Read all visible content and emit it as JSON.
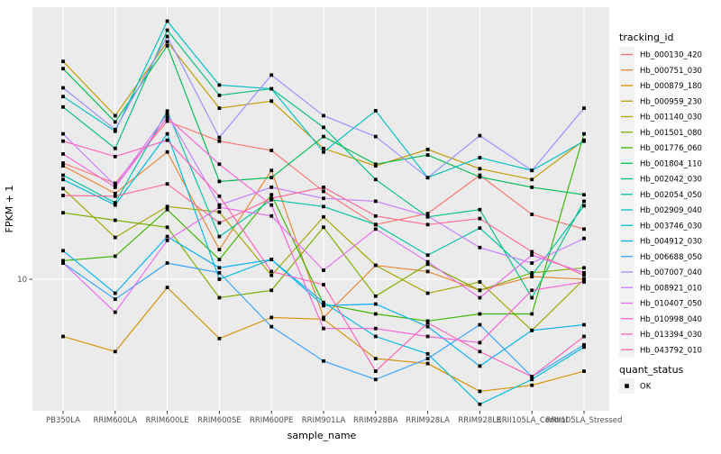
{
  "chart_data": {
    "type": "line",
    "title": "",
    "xlabel": "sample_name",
    "ylabel": "FPKM + 1",
    "y_scale": "log10",
    "y_tick_labels": [
      "10"
    ],
    "y_tick_values": [
      10
    ],
    "ylim_log10": [
      0.5697,
      1.8902
    ],
    "grid": "major-only-white-on-gray",
    "legend_position": "right",
    "point_shape": "filled-square-black",
    "categories": [
      "PB350LA",
      "RRIM600LA",
      "RRIM600LE",
      "RRIM600SE",
      "RRIM600PE",
      "RRIM901LA",
      "RRIM928BA",
      "RRIM928LA",
      "RRIM928LE",
      "RRII105LA_Control",
      "RRII105LA_Stressed"
    ],
    "series": [
      {
        "name": "Hb_000130_420",
        "color": "#F8766D",
        "values": [
          24.0,
          20.6,
          32.9,
          28.3,
          26.4,
          19.4,
          15.1,
          16.4,
          21.9,
          16.3,
          14.6
        ]
      },
      {
        "name": "Hb_000751_030",
        "color": "#EA8331",
        "values": [
          23.5,
          19.1,
          26.1,
          12.5,
          22.7,
          7.5,
          11.1,
          10.6,
          9.2,
          10.2,
          10.0
        ]
      },
      {
        "name": "Hb_000879_180",
        "color": "#D89000",
        "values": [
          6.5,
          5.8,
          9.4,
          6.4,
          7.5,
          7.4,
          5.5,
          5.3,
          4.3,
          4.5,
          5.0
        ]
      },
      {
        "name": "Hb_000959_230",
        "color": "#C09B00",
        "values": [
          51.6,
          34.3,
          59.8,
          36.3,
          38.3,
          26.8,
          23.5,
          26.6,
          23.0,
          21.2,
          28.5
        ]
      },
      {
        "name": "Hb_001140_030",
        "color": "#A3A500",
        "values": [
          19.8,
          13.7,
          17.3,
          16.6,
          10.3,
          16.0,
          11.1,
          9.0,
          9.8,
          6.8,
          10.0
        ]
      },
      {
        "name": "Hb_001501_080",
        "color": "#7CAE00",
        "values": [
          16.5,
          15.6,
          14.8,
          8.7,
          9.2,
          14.8,
          8.8,
          11.2,
          9.2,
          10.5,
          10.9
        ]
      },
      {
        "name": "Hb_001776_060",
        "color": "#39B600",
        "values": [
          11.5,
          11.9,
          16.9,
          11.6,
          18.9,
          8.3,
          7.7,
          7.3,
          7.7,
          7.7,
          29.9
        ]
      },
      {
        "name": "Hb_001804_110",
        "color": "#00BB4E",
        "values": [
          48.9,
          32.7,
          58.1,
          20.9,
          21.5,
          29.3,
          23.8,
          25.5,
          21.6,
          20.0,
          18.9
        ]
      },
      {
        "name": "Hb_002042_030",
        "color": "#00BF7D",
        "values": [
          36.6,
          26.8,
          65.3,
          40.0,
          42.0,
          31.4,
          21.2,
          16.0,
          16.9,
          8.7,
          18.0
        ]
      },
      {
        "name": "Hb_002054_050",
        "color": "#00C1A3",
        "values": [
          21.9,
          17.8,
          35.5,
          13.8,
          18.2,
          17.3,
          15.1,
          12.0,
          14.7,
          10.3,
          17.4
        ]
      },
      {
        "name": "Hb_002909_040",
        "color": "#00BFC4",
        "values": [
          39.6,
          30.5,
          69.9,
          43.2,
          42.0,
          26.1,
          35.6,
          21.5,
          25.0,
          22.7,
          28.3
        ]
      },
      {
        "name": "Hb_003746_030",
        "color": "#00BAE0",
        "values": [
          21.2,
          17.5,
          29.9,
          10.0,
          11.6,
          8.4,
          6.5,
          5.7,
          3.9,
          4.7,
          6.0
        ]
      },
      {
        "name": "Hb_004912_030",
        "color": "#00B0F6",
        "values": [
          12.4,
          9.0,
          13.8,
          10.9,
          11.6,
          8.2,
          8.3,
          7.0,
          5.2,
          6.8,
          7.1
        ]
      },
      {
        "name": "Hb_006688_050",
        "color": "#35A2FF",
        "values": [
          11.3,
          8.6,
          11.3,
          10.5,
          7.0,
          5.4,
          4.7,
          5.5,
          7.1,
          4.8,
          6.1
        ]
      },
      {
        "name": "Hb_007007_040",
        "color": "#9590FF",
        "values": [
          42.3,
          30.9,
          62.3,
          29.1,
          46.6,
          34.3,
          29.3,
          21.5,
          29.5,
          22.7,
          36.3
        ]
      },
      {
        "name": "Hb_008921_010",
        "color": "#C77CFF",
        "values": [
          29.9,
          20.3,
          34.7,
          17.5,
          20.0,
          18.4,
          18.0,
          16.1,
          12.7,
          11.3,
          13.6
        ]
      },
      {
        "name": "Hb_010407_050",
        "color": "#E76BF3",
        "values": [
          11.3,
          7.8,
          13.4,
          17.2,
          16.1,
          10.7,
          14.6,
          11.4,
          8.7,
          12.0,
          10.5
        ]
      },
      {
        "name": "Hb_010998_040",
        "color": "#FA62DB",
        "values": [
          25.7,
          20.0,
          33.8,
          23.8,
          17.5,
          6.9,
          6.9,
          6.5,
          6.2,
          9.2,
          9.8
        ]
      },
      {
        "name": "Hb_013394_030",
        "color": "#FF62BC",
        "values": [
          28.3,
          25.2,
          28.5,
          18.7,
          10.6,
          9.6,
          5.0,
          7.2,
          5.8,
          4.8,
          6.5
        ]
      },
      {
        "name": "Hb_043792_010",
        "color": "#FF6A98",
        "values": [
          18.8,
          18.7,
          20.5,
          15.3,
          18.4,
          20.0,
          16.1,
          15.1,
          15.8,
          12.3,
          10.3
        ]
      }
    ],
    "legend": {
      "series_title": "tracking_id",
      "shape_title": "quant_status",
      "shape_label": "OK",
      "shape_point_color": "#000000"
    },
    "colors": {
      "panel_bg": "#EBEBEB",
      "grid": "#FFFFFF",
      "axis_text": "#4D4D4D",
      "axis_title": "#000000",
      "legend_key_bg": "#F2F2F2",
      "point": "#000000"
    }
  }
}
